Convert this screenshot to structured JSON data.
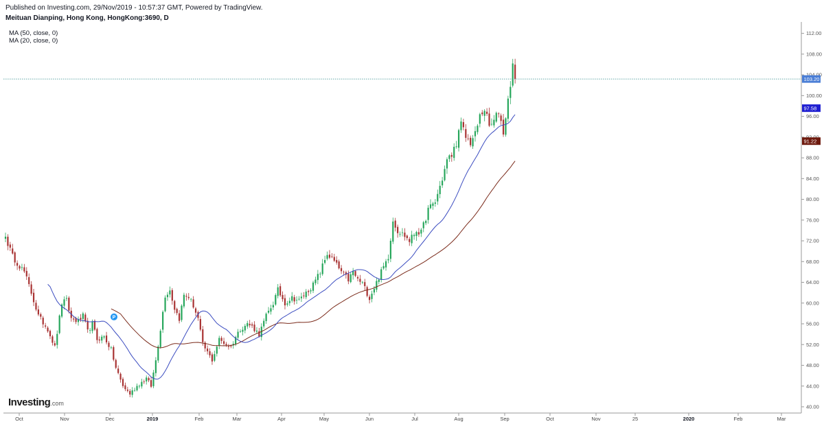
{
  "header": {
    "published": "Published on Investing.com, 29/Nov/2019 - 10:57:37 GMT, Powered by TradingView.",
    "title": "Meituan Dianping, Hong Kong, HongKong:3690, D"
  },
  "legend": {
    "ma50": "MA (50, close, 0)",
    "ma20": "MA (20, close, 0)"
  },
  "logo": {
    "main": "Investing",
    "suffix": ".com"
  },
  "colors": {
    "up": "#26a65b",
    "down": "#a83232",
    "ma20": "#3b4cc0",
    "ma50": "#7a2a1a",
    "last_price_line": "#2e8b8b",
    "last_price_badge": "#4a7ed6",
    "ma20_badge": "#1f1fd1",
    "ma50_badge": "#6e1a0e",
    "marker": "#2196f3"
  },
  "chart_data": {
    "type": "candlestick",
    "y_range": [
      38.8,
      114.2
    ],
    "y_ticks": [
      "40.00",
      "44.00",
      "48.00",
      "52.00",
      "56.00",
      "60.00",
      "64.00",
      "68.00",
      "72.00",
      "76.00",
      "80.00",
      "84.00",
      "88.00",
      "92.00",
      "96.00",
      "100.00",
      "104.00",
      "108.00",
      "112.00"
    ],
    "x_labels": [
      "Oct",
      "Nov",
      "Dec",
      "2019",
      "Feb",
      "Mar",
      "Apr",
      "May",
      "Jun",
      "Jul",
      "Aug",
      "Sep",
      "Oct",
      "Nov",
      "25",
      "2020",
      "Feb",
      "Mar"
    ],
    "bold_x_labels": [
      "2019",
      "2020"
    ],
    "last_price": "103.20",
    "ma20_last": "97.58",
    "ma50_last": "91.22",
    "marker_label": "P",
    "marker_value": 56.8,
    "waypoints": [
      [
        0,
        72.8
      ],
      [
        3,
        69
      ],
      [
        8,
        66
      ],
      [
        11,
        62
      ],
      [
        14,
        57.5
      ],
      [
        18,
        55
      ],
      [
        21,
        51.5
      ],
      [
        24,
        60
      ],
      [
        26,
        60.5
      ],
      [
        28,
        57
      ],
      [
        31,
        56.5
      ],
      [
        33,
        57.5
      ],
      [
        35,
        54.5
      ],
      [
        37,
        56
      ],
      [
        39,
        53
      ],
      [
        42,
        53.5
      ],
      [
        45,
        51
      ],
      [
        47,
        47.5
      ],
      [
        50,
        44
      ],
      [
        53,
        42.5
      ],
      [
        56,
        44
      ],
      [
        60,
        45.5
      ],
      [
        62,
        44
      ],
      [
        64,
        49
      ],
      [
        66,
        55
      ],
      [
        68,
        61.5
      ],
      [
        70,
        62.5
      ],
      [
        72,
        59
      ],
      [
        74,
        57
      ],
      [
        76,
        61.5
      ],
      [
        78,
        61.2
      ],
      [
        80,
        59.5
      ],
      [
        82,
        57
      ],
      [
        84,
        52
      ],
      [
        86,
        50.5
      ],
      [
        88,
        49
      ],
      [
        91,
        53
      ],
      [
        94,
        52
      ],
      [
        96,
        51.5
      ],
      [
        98,
        53.5
      ],
      [
        100,
        55
      ],
      [
        103,
        56
      ],
      [
        105,
        55.5
      ],
      [
        108,
        54
      ],
      [
        111,
        57.5
      ],
      [
        114,
        60
      ],
      [
        116,
        62.5
      ],
      [
        119,
        60
      ],
      [
        122,
        61
      ],
      [
        125,
        60.5
      ],
      [
        128,
        62
      ],
      [
        131,
        63.5
      ],
      [
        134,
        66
      ],
      [
        137,
        69.5
      ],
      [
        140,
        68
      ],
      [
        143,
        66
      ],
      [
        146,
        64.5
      ],
      [
        148,
        66
      ],
      [
        150,
        64.5
      ],
      [
        152,
        63.8
      ],
      [
        155,
        61
      ],
      [
        157,
        63
      ],
      [
        160,
        66
      ],
      [
        163,
        69
      ],
      [
        165,
        76
      ],
      [
        167,
        74
      ],
      [
        170,
        73
      ],
      [
        172,
        72
      ],
      [
        175,
        74
      ],
      [
        177,
        73.5
      ],
      [
        180,
        78
      ],
      [
        183,
        79.5
      ],
      [
        186,
        84
      ],
      [
        188,
        87.5
      ],
      [
        190,
        88.5
      ],
      [
        192,
        91
      ],
      [
        194,
        94.5
      ],
      [
        196,
        92
      ],
      [
        198,
        91
      ],
      [
        200,
        92.5
      ],
      [
        202,
        96
      ],
      [
        204,
        97.5
      ],
      [
        206,
        94
      ],
      [
        208,
        95
      ],
      [
        210,
        97
      ],
      [
        212,
        93
      ],
      [
        214,
        99
      ],
      [
        216,
        106
      ],
      [
        217,
        103.2
      ]
    ],
    "ma20_seed": 63.0,
    "ma50_seed": 59.3
  }
}
